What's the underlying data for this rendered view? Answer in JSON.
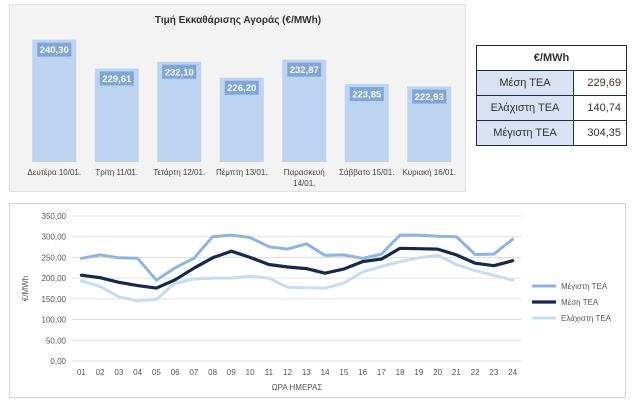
{
  "colors": {
    "bar_fill": "#bdd3ef",
    "bar_label_bg": "#7ea6d8",
    "max_line": "#8fb4de",
    "avg_line": "#15294f",
    "min_line": "#c8dcf1",
    "table_border": "#1b2a47",
    "table_label_bg": "#d9e2f3"
  },
  "bar_chart": {
    "type": "bar",
    "title": "Τιμή Εκκαθάρισης Αγοράς (€/MWh)",
    "categories": [
      [
        "Δευτέρα 10/01."
      ],
      [
        "Τρίτη 11/01."
      ],
      [
        "Τετάρτη 12/01."
      ],
      [
        "Πέμπτη 13/01."
      ],
      [
        "Παρασκευή",
        "14/01."
      ],
      [
        "Σάββατο 15/01."
      ],
      [
        "Κυριακή 16/01."
      ]
    ],
    "values": [
      240.3,
      229.61,
      232.1,
      226.2,
      232.87,
      223.85,
      222.93
    ],
    "value_labels": [
      "240,30",
      "229,61",
      "232,10",
      "226,20",
      "232,87",
      "223,85",
      "222,93"
    ],
    "ylim": [
      195,
      242
    ]
  },
  "summary_table": {
    "header": "€/MWh",
    "rows": [
      {
        "label": "Μέση ΤΕΑ",
        "value": "229,69"
      },
      {
        "label": "Ελάχιστη ΤΕΑ",
        "value": "140,74"
      },
      {
        "label": "Μέγιστη ΤΕΑ",
        "value": "304,35"
      }
    ]
  },
  "chart_data": {
    "type": "line",
    "title": "",
    "xlabel": "ΩΡΑ ΗΜΕΡΑΣ",
    "ylabel": "€/MWh",
    "ylim": [
      0,
      350
    ],
    "yticks": [
      "0,00",
      "50,00",
      "100,00",
      "150,00",
      "200,00",
      "250,00",
      "300,00",
      "350,00"
    ],
    "x": [
      "01",
      "02",
      "03",
      "04",
      "05",
      "06",
      "07",
      "08",
      "09",
      "10",
      "11",
      "12",
      "13",
      "14",
      "15",
      "16",
      "17",
      "18",
      "19",
      "20",
      "21",
      "22",
      "23",
      "24"
    ],
    "grid": true,
    "legend": "right",
    "series": [
      {
        "name": "Μέγιστη ΤΕΑ",
        "values": [
          248,
          256,
          249,
          248,
          195,
          225,
          248,
          300,
          304,
          298,
          276,
          270,
          283,
          255,
          256,
          248,
          258,
          304,
          304,
          301,
          300,
          257,
          258,
          294
        ]
      },
      {
        "name": "Μέση ΤΕΑ",
        "values": [
          207,
          201,
          190,
          182,
          176,
          196,
          224,
          249,
          265,
          250,
          233,
          227,
          223,
          212,
          222,
          240,
          246,
          272,
          271,
          270,
          256,
          236,
          230,
          242
        ]
      },
      {
        "name": "Ελάχιστη ΤΕΑ",
        "values": [
          193,
          180,
          155,
          145,
          149,
          188,
          198,
          200,
          200,
          205,
          200,
          178,
          177,
          176,
          188,
          215,
          228,
          240,
          249,
          255,
          233,
          218,
          207,
          195
        ]
      }
    ]
  }
}
